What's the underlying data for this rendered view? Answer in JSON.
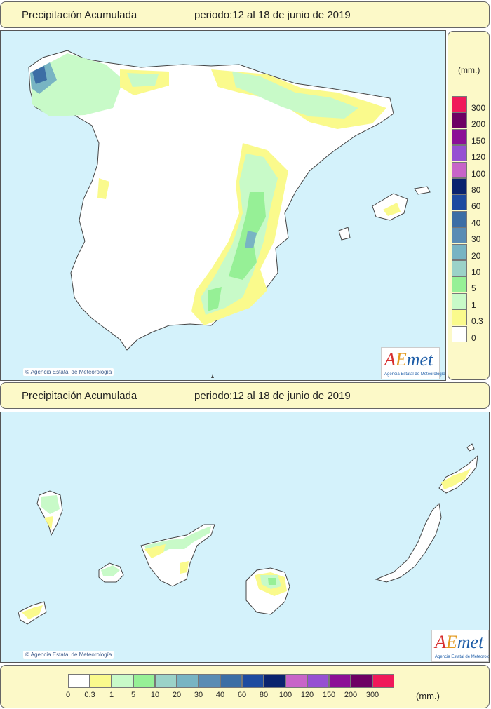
{
  "top": {
    "title": "Precipitación Acumulada",
    "period": "periodo:12 al 18 de junio de 2019"
  },
  "bottom": {
    "title": "Precipitación Acumulada",
    "period": "periodo:12 al 18 de junio de 2019"
  },
  "credit": "© Agencia Estatal de Meteorología",
  "logo": {
    "a": "A",
    "e": "E",
    "met": "met",
    "sub": "Agencia Estatal de Meteorología"
  },
  "legend": {
    "units": "(mm.)",
    "classes": [
      {
        "label": "0",
        "color": "#ffffff"
      },
      {
        "label": "0.3",
        "color": "#fafa8c"
      },
      {
        "label": "1",
        "color": "#c8fac8"
      },
      {
        "label": "5",
        "color": "#96f096"
      },
      {
        "label": "10",
        "color": "#9bd2c8"
      },
      {
        "label": "20",
        "color": "#78b4c3"
      },
      {
        "label": "30",
        "color": "#5a8cb4"
      },
      {
        "label": "40",
        "color": "#3c6ea5"
      },
      {
        "label": "60",
        "color": "#1e4ba0"
      },
      {
        "label": "80",
        "color": "#0a236e"
      },
      {
        "label": "100",
        "color": "#c864c8"
      },
      {
        "label": "120",
        "color": "#9650d2"
      },
      {
        "label": "150",
        "color": "#8c0f96"
      },
      {
        "label": "200",
        "color": "#6e0064"
      },
      {
        "label": "300",
        "color": "#f0195a"
      }
    ]
  }
}
